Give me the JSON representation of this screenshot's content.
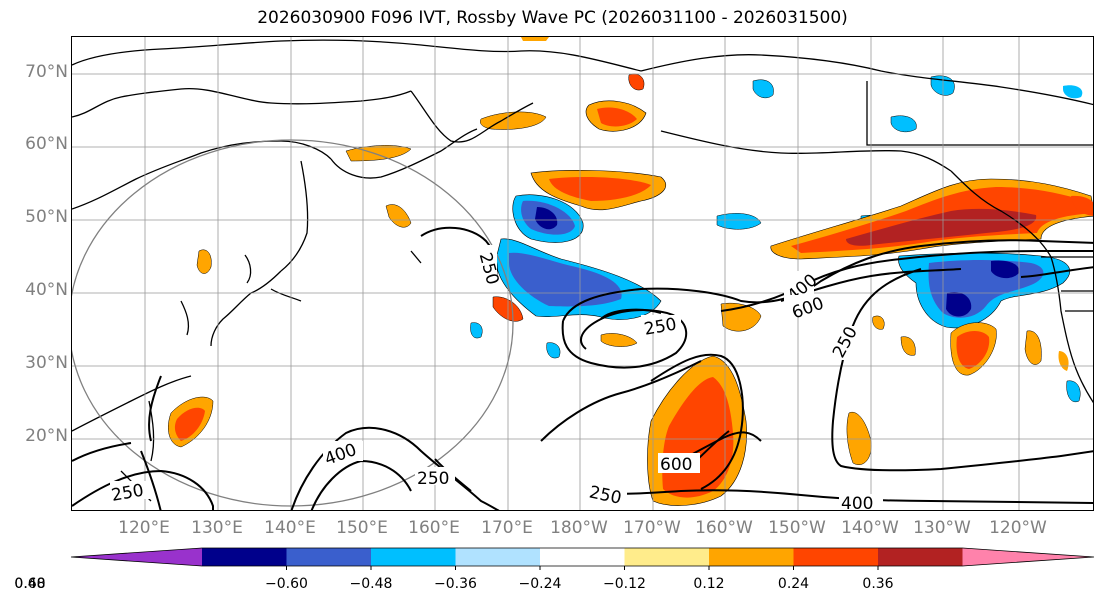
{
  "title": "2026030900 F096 IVT, Rossby Wave PC (2026031100 - 2026031500)",
  "lat_labels": [
    "70°N",
    "60°N",
    "50°N",
    "40°N",
    "30°N",
    "20°N"
  ],
  "lon_labels": [
    "120°E",
    "130°E",
    "140°E",
    "150°E",
    "160°E",
    "170°E",
    "180°W",
    "170°W",
    "160°W",
    "150°W",
    "140°W",
    "130°W",
    "120°W"
  ],
  "contour_labels": [
    "250",
    "250",
    "250",
    "250",
    "250",
    "250",
    "400",
    "400",
    "400",
    "600",
    "600"
  ],
  "colorbar": {
    "ticks": [
      "−0.60",
      "−0.48",
      "−0.36",
      "−0.24",
      "−0.12",
      "0.12",
      "0.24",
      "0.36",
      "0.48",
      "0.60"
    ],
    "colors": [
      "#9932CC",
      "#00008B",
      "#3A5FCD",
      "#00BFFF",
      "#B0E2FF",
      "#FFFFFF",
      "#FFEC8B",
      "#FFA500",
      "#FF4500",
      "#B22222",
      "#FF82AB"
    ]
  },
  "colors": {
    "grid": "#999999",
    "land": "#000000",
    "label": "#808080",
    "circle": "#808080"
  }
}
